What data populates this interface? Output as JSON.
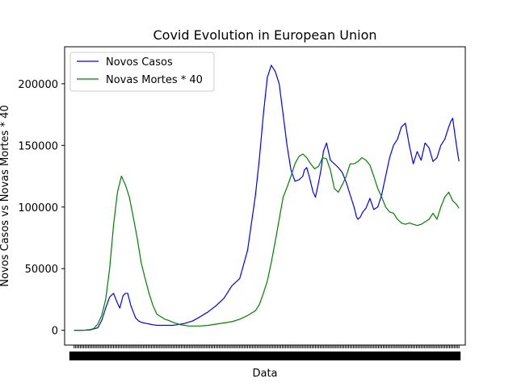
{
  "chart_data": {
    "type": "line",
    "title": "Covid Evolution in European Union",
    "xlabel": "Data",
    "ylabel": "Novos Casos vs Novas Mortes * 40",
    "ylim": [
      -12000,
      230000
    ],
    "yticks": [
      0,
      50000,
      100000,
      150000,
      200000
    ],
    "ytick_labels": [
      "0",
      "50000",
      "100000",
      "150000",
      "200000"
    ],
    "xlim": [
      -12,
      496
    ],
    "grid": false,
    "legend": "top-left",
    "series": [
      {
        "name": "Novos Casos",
        "color": "#0000ff",
        "x": [
          0,
          10,
          20,
          30,
          35,
          40,
          45,
          50,
          55,
          58,
          62,
          65,
          68,
          72,
          75,
          78,
          82,
          85,
          88,
          92,
          96,
          100,
          105,
          110,
          115,
          120,
          125,
          130,
          140,
          150,
          160,
          170,
          180,
          190,
          200,
          210,
          220,
          230,
          235,
          240,
          245,
          250,
          255,
          260,
          265,
          270,
          275,
          280,
          285,
          290,
          292,
          295,
          298,
          300,
          303,
          306,
          310,
          313,
          316,
          320,
          325,
          330,
          335,
          340,
          345,
          350,
          355,
          358,
          360,
          363,
          366,
          370,
          375,
          380,
          385,
          390,
          395,
          400,
          405,
          410,
          415,
          420,
          425,
          430,
          435,
          440,
          445,
          450,
          455,
          460,
          465,
          470,
          475,
          478,
          480,
          483,
          486,
          488
        ],
        "values": [
          0,
          0,
          200,
          2000,
          8000,
          18000,
          27000,
          30000,
          22000,
          18000,
          28000,
          30000,
          30000,
          20000,
          15000,
          10000,
          7500,
          6500,
          6000,
          5500,
          5000,
          4500,
          4000,
          4000,
          4000,
          4000,
          4000,
          4500,
          5500,
          7500,
          11000,
          15000,
          20000,
          26000,
          36000,
          42000,
          65000,
          110000,
          140000,
          175000,
          205000,
          215000,
          210000,
          200000,
          175000,
          150000,
          130000,
          121000,
          122000,
          125000,
          130000,
          132000,
          125000,
          120000,
          112000,
          108000,
          120000,
          130000,
          145000,
          152000,
          138000,
          135000,
          132000,
          128000,
          120000,
          110000,
          100000,
          92000,
          90000,
          92000,
          96000,
          99000,
          107000,
          98000,
          100000,
          110000,
          125000,
          140000,
          150000,
          155000,
          165000,
          168000,
          150000,
          135000,
          145000,
          138000,
          152000,
          148000,
          137000,
          140000,
          150000,
          155000,
          165000,
          170000,
          172000,
          158000,
          145000,
          137000
        ],
        "note_series_shape": "approximate trace"
      },
      {
        "name": "Novas Mortes * 40",
        "color": "#008000",
        "x": [
          0,
          10,
          20,
          25,
          30,
          35,
          40,
          45,
          50,
          55,
          60,
          65,
          70,
          75,
          80,
          85,
          90,
          95,
          100,
          105,
          110,
          115,
          120,
          125,
          130,
          135,
          140,
          145,
          150,
          160,
          170,
          180,
          190,
          200,
          210,
          220,
          230,
          235,
          240,
          245,
          250,
          255,
          260,
          265,
          270,
          275,
          280,
          285,
          290,
          295,
          300,
          305,
          310,
          315,
          320,
          325,
          330,
          335,
          340,
          345,
          350,
          355,
          360,
          365,
          370,
          375,
          380,
          385,
          390,
          395,
          400,
          405,
          410,
          415,
          420,
          425,
          430,
          435,
          440,
          445,
          450,
          455,
          460,
          465,
          470,
          475,
          480,
          485,
          488
        ],
        "values": [
          0,
          0,
          500,
          1500,
          5000,
          12000,
          25000,
          50000,
          85000,
          112000,
          125000,
          118000,
          108000,
          92000,
          75000,
          55000,
          42000,
          30000,
          20000,
          13000,
          11000,
          9000,
          8000,
          6500,
          5500,
          4500,
          4000,
          3500,
          3500,
          3500,
          4000,
          5000,
          6000,
          7000,
          9000,
          12000,
          16000,
          21000,
          30000,
          40000,
          55000,
          72000,
          90000,
          108000,
          116000,
          125000,
          135000,
          141000,
          143000,
          140000,
          135000,
          131000,
          133000,
          140000,
          139000,
          130000,
          115000,
          112000,
          118000,
          125000,
          135000,
          135000,
          137000,
          140000,
          138000,
          134000,
          125000,
          115000,
          108000,
          100000,
          96000,
          95000,
          90000,
          87000,
          86000,
          87000,
          86000,
          85000,
          86000,
          88000,
          90000,
          95000,
          90000,
          100000,
          108000,
          112000,
          105000,
          102000,
          99000
        ],
        "note_series_shape": "approximate trace"
      }
    ]
  }
}
